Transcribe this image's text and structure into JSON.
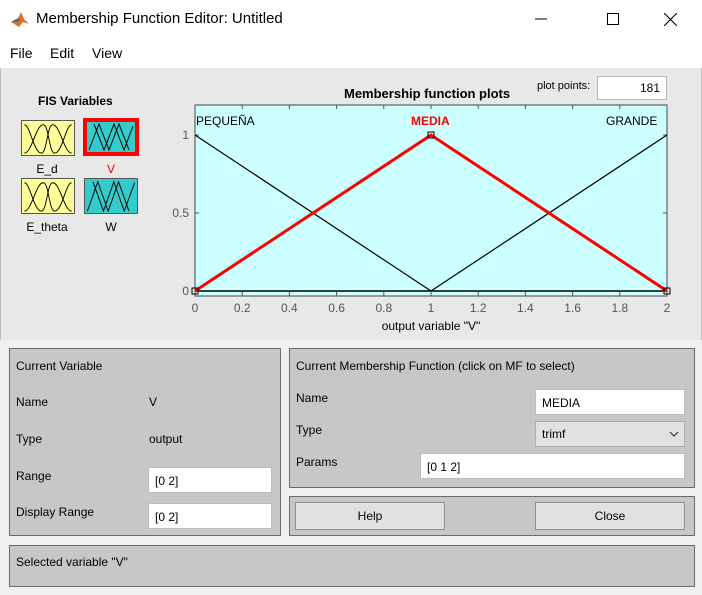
{
  "window": {
    "title": "Membership Function Editor: Untitled",
    "minimize": "minimize",
    "maximize": "maximize",
    "close": "close"
  },
  "menu": {
    "file": "File",
    "edit": "Edit",
    "view": "View"
  },
  "fis": {
    "title": "FIS Variables",
    "variables": [
      {
        "label": "E_d",
        "kind": "input",
        "selected": false
      },
      {
        "label": "V",
        "kind": "output",
        "selected": true
      },
      {
        "label": "E_theta",
        "kind": "input",
        "selected": false
      },
      {
        "label": "W",
        "kind": "output",
        "selected": false
      }
    ]
  },
  "plot": {
    "title": "Membership function plots",
    "plot_points_label": "plot points:",
    "plot_points": "181",
    "xlabel": "output variable \"V\""
  },
  "chart_data": {
    "type": "line",
    "title": "Membership function plots",
    "xlabel": "output variable \"V\"",
    "ylabel": "",
    "xlim": [
      0,
      2
    ],
    "ylim": [
      0,
      1
    ],
    "x_ticks": [
      "0",
      "0.2",
      "0.4",
      "0.6",
      "0.8",
      "1",
      "1.2",
      "1.4",
      "1.6",
      "1.8",
      "2"
    ],
    "y_ticks": [
      "0",
      "0.5",
      "1"
    ],
    "background": "#ccffff",
    "series": [
      {
        "name": "PEQUEÑA",
        "x": [
          0,
          1
        ],
        "y": [
          1,
          0
        ],
        "color": "#000000",
        "selected": false
      },
      {
        "name": "MEDIA",
        "x": [
          0,
          1,
          2
        ],
        "y": [
          0,
          1,
          0
        ],
        "color": "#ff0000",
        "selected": true
      },
      {
        "name": "GRANDE",
        "x": [
          1,
          2
        ],
        "y": [
          0,
          1
        ],
        "color": "#000000",
        "selected": false
      }
    ]
  },
  "current_variable": {
    "title": "Current Variable",
    "name_label": "Name",
    "name_value": "V",
    "type_label": "Type",
    "type_value": "output",
    "range_label": "Range",
    "range_value": "[0 2]",
    "display_range_label": "Display Range",
    "display_range_value": "[0 2]"
  },
  "current_mf": {
    "title": "Current Membership Function (click on MF to select)",
    "name_label": "Name",
    "name_value": "MEDIA",
    "type_label": "Type",
    "type_value": "trimf",
    "params_label": "Params",
    "params_value": "[0 1 2]"
  },
  "buttons": {
    "help": "Help",
    "close": "Close"
  },
  "status": "Selected variable \"V\""
}
